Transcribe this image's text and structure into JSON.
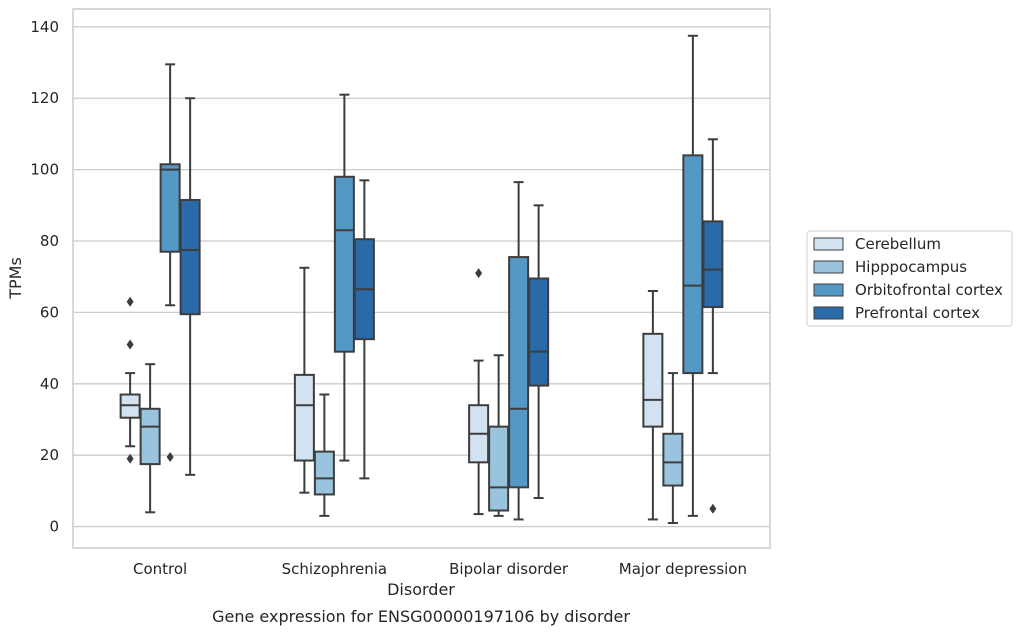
{
  "caption": "Gene expression for ENSG00000197106 by disorder",
  "chart_data": {
    "type": "box",
    "title": "",
    "xlabel": "Disorder",
    "ylabel": "TPMs",
    "ylim": [
      -6,
      145
    ],
    "yticks": [
      0,
      20,
      40,
      60,
      80,
      100,
      120,
      140
    ],
    "grid": "horizontal",
    "legend_position": "right",
    "categories": [
      "Control",
      "Schizophrenia",
      "Bipolar disorder",
      "Major depression"
    ],
    "series": [
      {
        "name": "Cerebellum",
        "color": "#d3e2f0",
        "boxes": [
          {
            "whislo": 22.5,
            "q1": 30.5,
            "med": 34,
            "q3": 37,
            "whishi": 43,
            "fliers": [
              63,
              51,
              19
            ]
          },
          {
            "whislo": 9.5,
            "q1": 18.5,
            "med": 34,
            "q3": 42.5,
            "whishi": 72.5,
            "fliers": []
          },
          {
            "whislo": 3.5,
            "q1": 18,
            "med": 26,
            "q3": 34,
            "whishi": 46.5,
            "fliers": [
              71
            ]
          },
          {
            "whislo": 2,
            "q1": 28,
            "med": 35.5,
            "q3": 54,
            "whishi": 66,
            "fliers": []
          }
        ]
      },
      {
        "name": "Hipppocampus",
        "color": "#9ac4de",
        "boxes": [
          {
            "whislo": 4,
            "q1": 17.5,
            "med": 28,
            "q3": 33,
            "whishi": 45.5,
            "fliers": []
          },
          {
            "whislo": 3,
            "q1": 9,
            "med": 13.5,
            "q3": 21,
            "whishi": 37,
            "fliers": []
          },
          {
            "whislo": 3,
            "q1": 4.5,
            "med": 11,
            "q3": 28,
            "whishi": 48,
            "fliers": []
          },
          {
            "whislo": 1,
            "q1": 11.5,
            "med": 18,
            "q3": 26,
            "whishi": 43,
            "fliers": []
          }
        ]
      },
      {
        "name": "Orbitofrontal cortex",
        "color": "#5498c6",
        "boxes": [
          {
            "whislo": 62,
            "q1": 77,
            "med": 100,
            "q3": 101.5,
            "whishi": 129.5,
            "fliers": [
              19.5
            ]
          },
          {
            "whislo": 18.5,
            "q1": 49,
            "med": 83,
            "q3": 98,
            "whishi": 121,
            "fliers": []
          },
          {
            "whislo": 2,
            "q1": 11,
            "med": 33,
            "q3": 75.5,
            "whishi": 96.5,
            "fliers": []
          },
          {
            "whislo": 3,
            "q1": 43,
            "med": 67.5,
            "q3": 104,
            "whishi": 137.5,
            "fliers": []
          }
        ]
      },
      {
        "name": "Prefrontal cortex",
        "color": "#2b6aa8",
        "boxes": [
          {
            "whislo": 14.5,
            "q1": 59.5,
            "med": 77.5,
            "q3": 91.5,
            "whishi": 120,
            "fliers": []
          },
          {
            "whislo": 13.5,
            "q1": 52.5,
            "med": 66.5,
            "q3": 80.5,
            "whishi": 97,
            "fliers": []
          },
          {
            "whislo": 8,
            "q1": 39.5,
            "med": 49,
            "q3": 69.5,
            "whishi": 90,
            "fliers": []
          },
          {
            "whislo": 43,
            "q1": 61.5,
            "med": 72,
            "q3": 85.5,
            "whishi": 108.5,
            "fliers": [
              5
            ]
          }
        ]
      }
    ]
  }
}
